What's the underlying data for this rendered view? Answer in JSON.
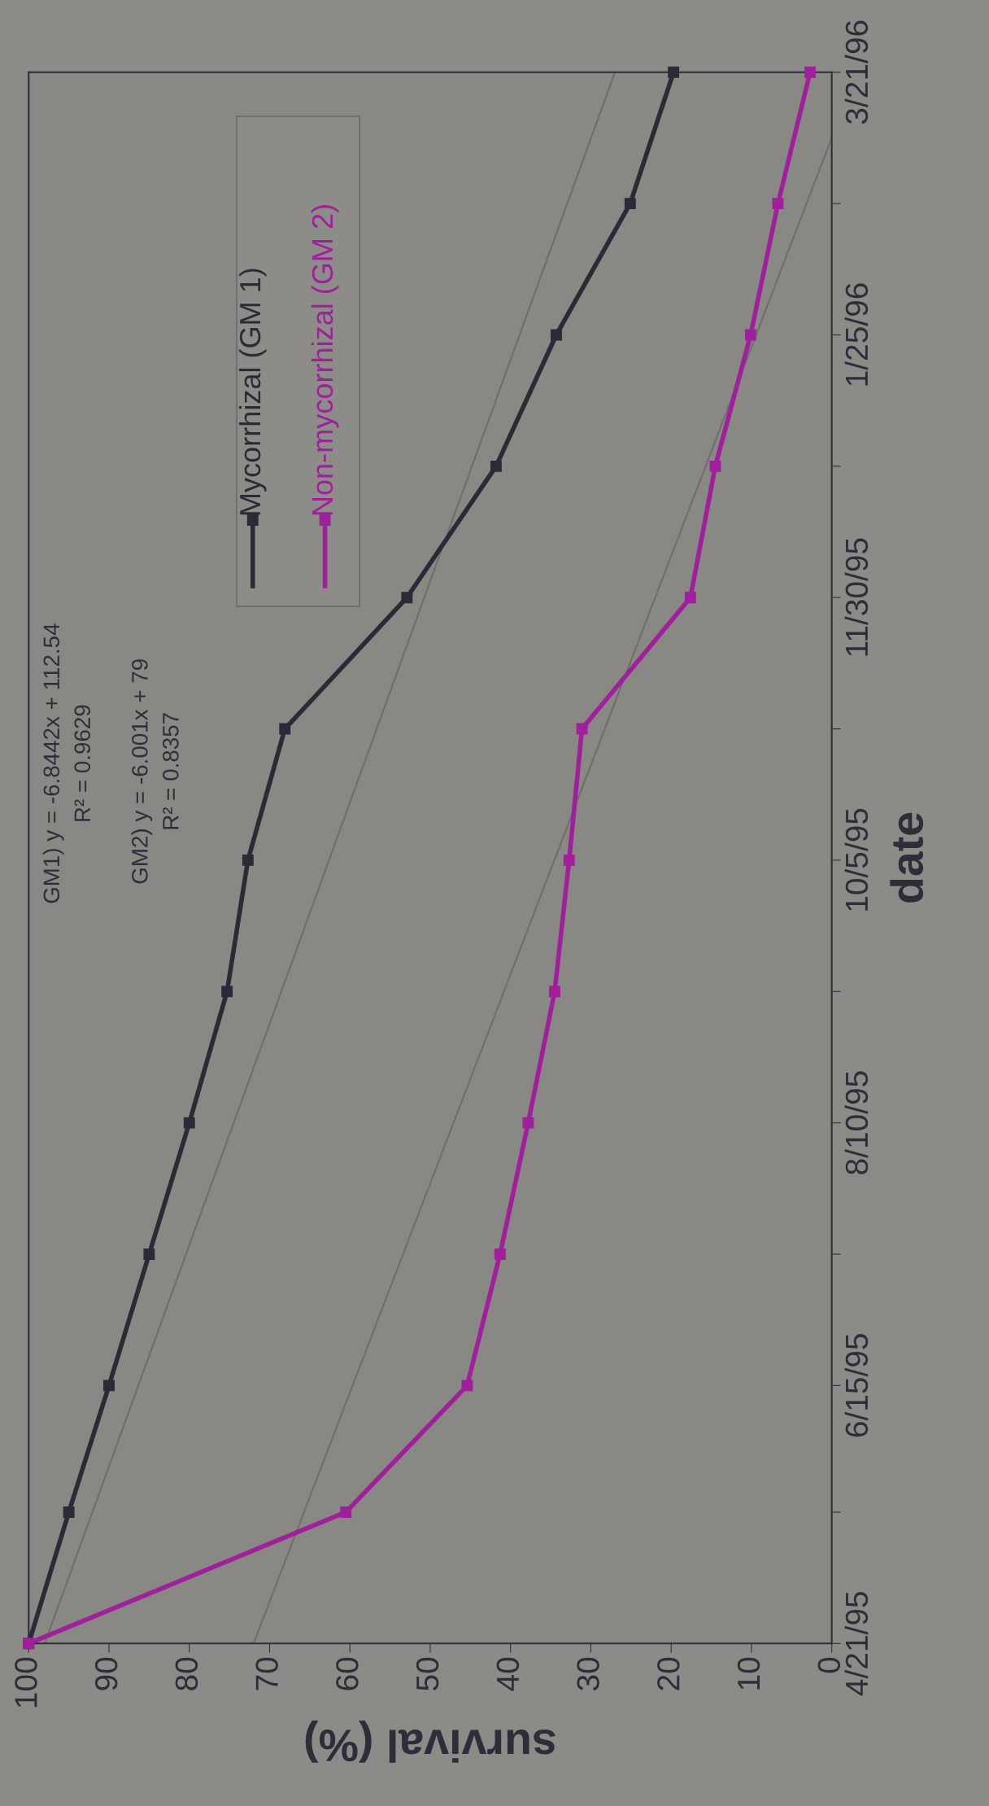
{
  "chart_data": {
    "type": "line",
    "orientation": "horizontal",
    "xlabel": "survival (%)",
    "ylabel": "date",
    "x": [
      "1995-04-21",
      "1995-05-19",
      "1995-06-15",
      "1995-07-13",
      "1995-08-10",
      "1995-09-07",
      "1995-10-05",
      "1995-11-02",
      "1995-11-30",
      "1995-12-28",
      "1996-01-25",
      "1996-02-22",
      "1996-03-21"
    ],
    "series": [
      {
        "name": "Mycorrhizal (GM 1)",
        "color": "#2b2b38",
        "marker": "square",
        "values": [
          100,
          95,
          90,
          85,
          80,
          75.3,
          72.7,
          68.1,
          52.9,
          41.8,
          34.3,
          25.1,
          19.7
        ]
      },
      {
        "name": "Non-mycorrhizal (GM 2)",
        "color": "#a0209c",
        "marker": "square",
        "values": [
          100,
          60.5,
          45.4,
          41.3,
          37.8,
          34.5,
          32.7,
          31.1,
          17.6,
          14.5,
          10.1,
          6.7,
          2.7
        ]
      },
      {
        "type": "line",
        "color": "#706e6c",
        "marker": "none",
        "x": [
          "1995-04-21",
          "1996-03-21"
        ],
        "values": [
          98,
          27
        ]
      },
      {
        "type": "line",
        "color": "#706e6c",
        "marker": "none",
        "x": [
          "1995-04-21",
          "1996-03-07"
        ],
        "values": [
          72,
          0
        ]
      }
    ],
    "ylim": [
      "1995-04-21",
      "1996-03-21"
    ],
    "yticks": [
      {
        "value": "1995-04-21",
        "label": "4/21/95"
      },
      {
        "value": "1995-05-19",
        "label": null
      },
      {
        "value": "1995-06-15",
        "label": "6/15/95"
      },
      {
        "value": "1995-07-13",
        "label": null
      },
      {
        "value": "1995-08-10",
        "label": "8/10/95"
      },
      {
        "value": "1995-09-07",
        "label": null
      },
      {
        "value": "1995-10-05",
        "label": "10/5/95"
      },
      {
        "value": "1995-11-02",
        "label": null
      },
      {
        "value": "1995-11-30",
        "label": "11/30/95"
      },
      {
        "value": "1995-12-28",
        "label": null
      },
      {
        "value": "1996-01-25",
        "label": "1/25/96"
      },
      {
        "value": "1996-02-22",
        "label": null
      },
      {
        "value": "1996-03-21",
        "label": "3/21/96"
      }
    ],
    "xlim": [
      100,
      0
    ],
    "xticks": [
      100,
      90,
      80,
      70,
      60,
      50,
      40,
      30,
      20,
      10,
      0
    ],
    "grid": false,
    "legend": "top left",
    "line_style": "solid",
    "annotations": [
      "GM1) y = -6.8442x + 112.54\nR² = 0.9629",
      "GM2) y = -6.001x + 79\nR² = 0.8357"
    ]
  }
}
